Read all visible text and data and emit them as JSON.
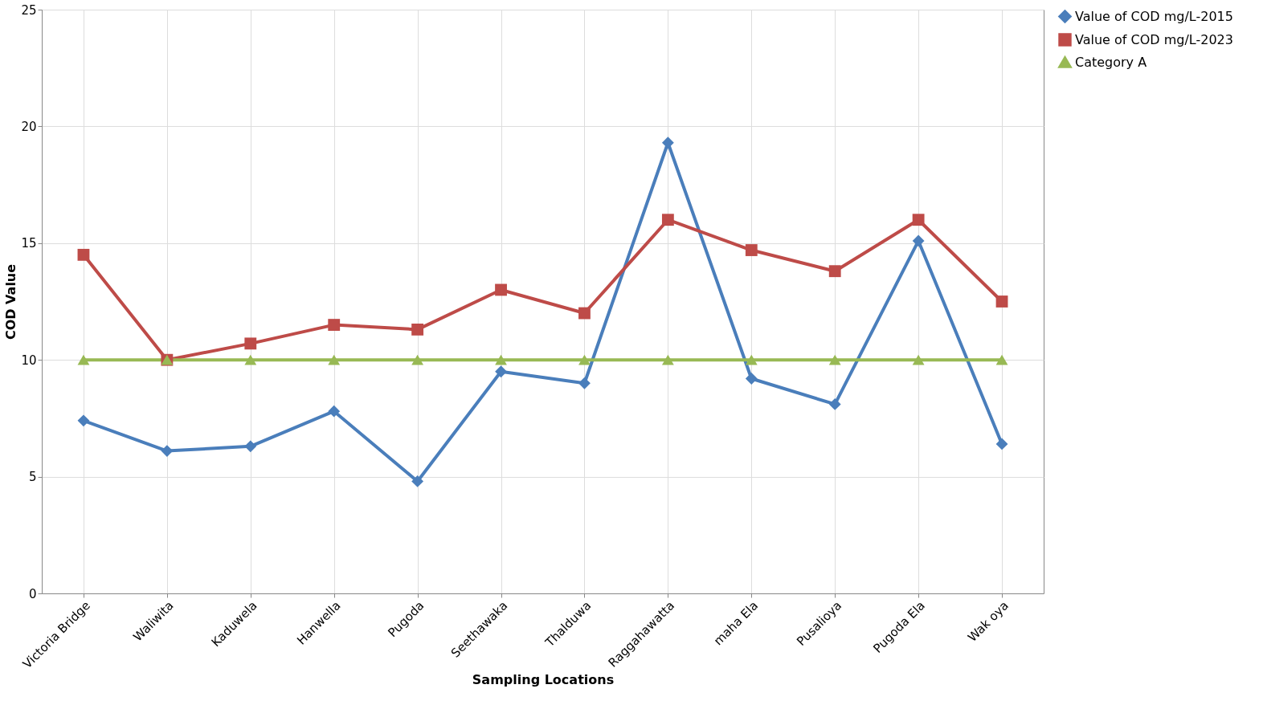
{
  "chart_data": {
    "type": "line",
    "xlabel": "Sampling Locations",
    "ylabel": "COD  Value",
    "categories": [
      "Victoria Bridge",
      "Waliwita",
      "Kaduwela",
      "Hanwella",
      "Pugoda",
      "Seethawaka",
      "Thalduwa",
      "Raggahawatta",
      "maha Ela",
      "Pusalioya",
      "Pugoda Ela",
      "Wak oya"
    ],
    "series": [
      {
        "name": "Value of COD mg/L-2015",
        "color": "#4a7ebb",
        "marker": "diamond",
        "values": [
          7.4,
          6.1,
          6.3,
          7.8,
          4.8,
          9.5,
          9.0,
          19.3,
          9.2,
          8.1,
          15.1,
          6.4
        ]
      },
      {
        "name": "Value of COD mg/L-2023",
        "color": "#be4b48",
        "marker": "square",
        "values": [
          14.5,
          10.0,
          10.7,
          11.5,
          11.3,
          13.0,
          12.0,
          16.0,
          14.7,
          13.8,
          16.0,
          12.5
        ]
      },
      {
        "name": "Category  A",
        "color": "#98b954",
        "marker": "triangle",
        "values": [
          10,
          10,
          10,
          10,
          10,
          10,
          10,
          10,
          10,
          10,
          10,
          10
        ]
      }
    ],
    "ylim": [
      0,
      25
    ],
    "yticks": [
      0,
      5,
      10,
      15,
      20,
      25
    ],
    "grid": true,
    "legend": "right",
    "line_style": "solid"
  }
}
